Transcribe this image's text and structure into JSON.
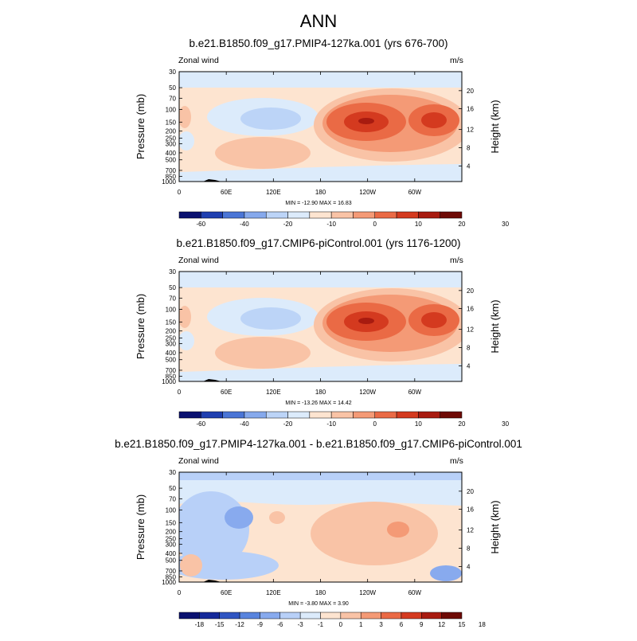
{
  "title": "ANN",
  "colors": {
    "palette11": [
      "#0a1170",
      "#1f3fb0",
      "#4a75d6",
      "#86a9ec",
      "#bcd4f7",
      "#dcebfb",
      "#fde4d0",
      "#f9c3a6",
      "#f49a76",
      "#ea6a45",
      "#d43a1f",
      "#a81b10",
      "#6e0a05"
    ],
    "palette13": [
      "#0a1170",
      "#15299a",
      "#2f55c2",
      "#5884de",
      "#88aaee",
      "#b8d0f8",
      "#dcebfb",
      "#fde4d0",
      "#f9c3a6",
      "#f49a76",
      "#ea6a45",
      "#d43a1f",
      "#a81b10",
      "#6e0a05"
    ]
  },
  "chart_data": [
    {
      "type": "heatmap",
      "title": "b.e21.B1850.f09_g17.PMIP4-127ka.001 (yrs 676-700)",
      "variable": "Zonal wind",
      "units": "m/s",
      "xlabel": "",
      "ylabel": "Pressure (mb)",
      "ylabel_right": "Height (km)",
      "x_ticks": [
        "0",
        "60E",
        "120E",
        "180",
        "120W",
        "60W"
      ],
      "y_ticks": [
        "30",
        "50",
        "70",
        "100",
        "150",
        "200",
        "250",
        "300",
        "400",
        "500",
        "700",
        "850",
        "1000"
      ],
      "y_ticks_right": [
        "20",
        "16",
        "12",
        "8",
        "4"
      ],
      "min": -12.9,
      "max": 16.83,
      "stats_text": "MIN = -12.90   MAX =  16.83",
      "colorbar_labels": [
        "-60",
        "-40",
        "-20",
        "-10",
        "0",
        "10",
        "20",
        "30"
      ],
      "levels": [
        -60,
        -50,
        -40,
        -30,
        -20,
        -15,
        -10,
        -5,
        0,
        5,
        10,
        15,
        20,
        25,
        30
      ],
      "palette": "palette11",
      "features": [
        {
          "kind": "positive-jet",
          "lon": 150,
          "p": 150,
          "value": 16.8
        },
        {
          "kind": "positive-jet",
          "lon": 250,
          "p": 150,
          "value": 14
        },
        {
          "kind": "negative-core",
          "lon": 110,
          "p": 150,
          "value": -12.9
        },
        {
          "kind": "negative-core",
          "lon": 5,
          "p": 250,
          "value": -6
        }
      ]
    },
    {
      "type": "heatmap",
      "title": "b.e21.B1850.f09_g17.CMIP6-piControl.001 (yrs 1176-1200)",
      "variable": "Zonal wind",
      "units": "m/s",
      "xlabel": "",
      "ylabel": "Pressure (mb)",
      "ylabel_right": "Height (km)",
      "x_ticks": [
        "0",
        "60E",
        "120E",
        "180",
        "120W",
        "60W"
      ],
      "y_ticks": [
        "30",
        "50",
        "70",
        "100",
        "150",
        "200",
        "250",
        "300",
        "400",
        "500",
        "700",
        "850",
        "1000"
      ],
      "y_ticks_right": [
        "20",
        "16",
        "12",
        "8",
        "4"
      ],
      "min": -13.26,
      "max": 14.42,
      "stats_text": "MIN = -13.26   MAX =  14.42",
      "colorbar_labels": [
        "-60",
        "-40",
        "-20",
        "-10",
        "0",
        "10",
        "20",
        "30"
      ],
      "levels": [
        -60,
        -50,
        -40,
        -30,
        -20,
        -15,
        -10,
        -5,
        0,
        5,
        10,
        15,
        20,
        25,
        30
      ],
      "palette": "palette11",
      "features": [
        {
          "kind": "positive-jet",
          "lon": 150,
          "p": 150,
          "value": 14.4
        },
        {
          "kind": "positive-jet",
          "lon": 255,
          "p": 150,
          "value": 13
        },
        {
          "kind": "negative-core",
          "lon": 110,
          "p": 150,
          "value": -13.3
        }
      ]
    },
    {
      "type": "heatmap",
      "title": "b.e21.B1850.f09_g17.PMIP4-127ka.001 - b.e21.B1850.f09_g17.CMIP6-piControl.001",
      "variable": "Zonal wind",
      "units": "m/s",
      "xlabel": "",
      "ylabel": "Pressure (mb)",
      "ylabel_right": "Height (km)",
      "x_ticks": [
        "0",
        "60E",
        "120E",
        "180",
        "120W",
        "60W"
      ],
      "y_ticks": [
        "30",
        "50",
        "70",
        "100",
        "150",
        "200",
        "250",
        "300",
        "400",
        "500",
        "700",
        "850",
        "1000"
      ],
      "y_ticks_right": [
        "20",
        "16",
        "12",
        "8",
        "4"
      ],
      "min": -3.8,
      "max": 3.9,
      "stats_text": "MIN =  -3.80   MAX =   3.90",
      "colorbar_labels": [
        "-18",
        "-15",
        "-12",
        "-9",
        "-6",
        "-3",
        "-1",
        "0",
        "1",
        "3",
        "6",
        "9",
        "12",
        "15",
        "18"
      ],
      "levels": [
        -18,
        -15,
        -12,
        -9,
        -6,
        -3,
        -1,
        0,
        1,
        3,
        6,
        9,
        12,
        15,
        18
      ],
      "palette": "palette13",
      "features": [
        {
          "kind": "positive-anomaly",
          "lon": 185,
          "p": 250,
          "value": 1.5
        },
        {
          "kind": "positive-anomaly",
          "lon": 200,
          "p": 200,
          "value": 3.9
        },
        {
          "kind": "negative-anomaly",
          "lon": 50,
          "p": 120,
          "value": -3.8
        },
        {
          "kind": "negative-anomaly",
          "lon": 40,
          "p": 400,
          "value": -2
        }
      ]
    }
  ]
}
